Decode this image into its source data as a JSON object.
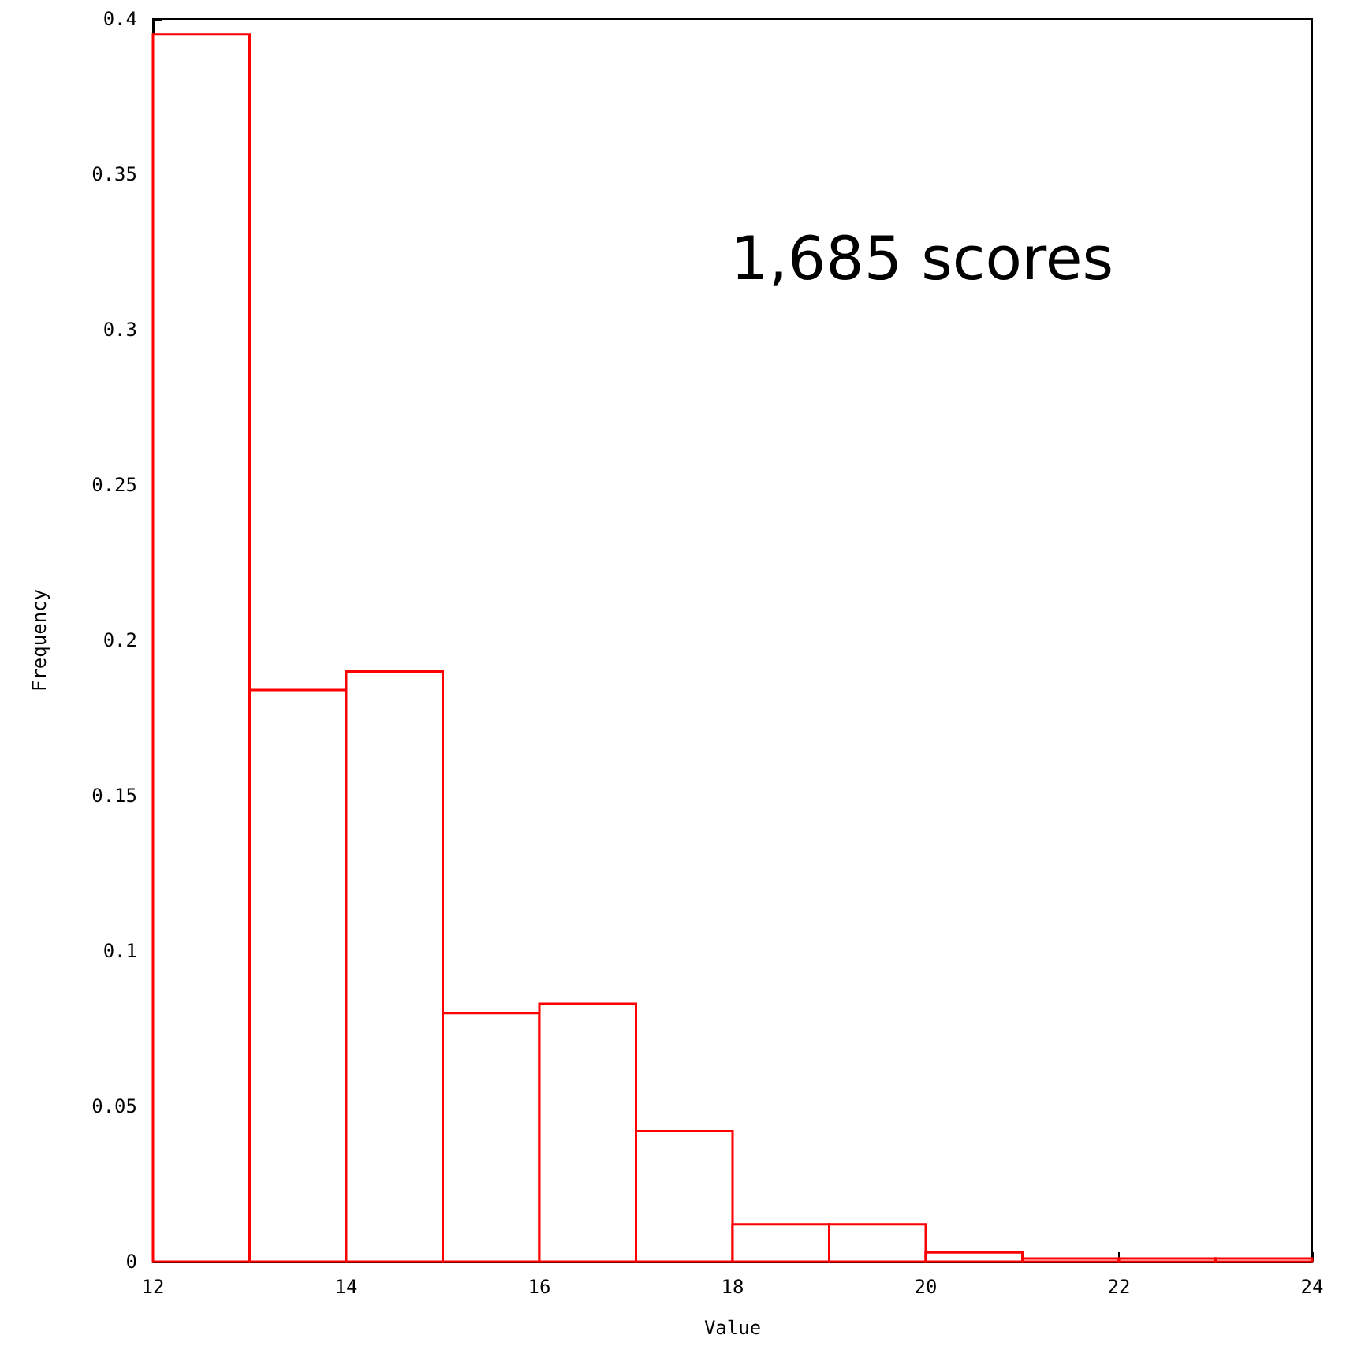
{
  "chart_data": {
    "type": "histogram",
    "xlabel": "Value",
    "ylabel": "Frequency",
    "bins": [
      12,
      13,
      14,
      15,
      16,
      17,
      18,
      19,
      20,
      21,
      22,
      23,
      24
    ],
    "values": [
      0.395,
      0.184,
      0.19,
      0.08,
      0.083,
      0.042,
      0.012,
      0.012,
      0.003,
      0.001,
      0.001,
      0.001
    ],
    "color": "#ff0000",
    "xlim": [
      12,
      24
    ],
    "xticks": [
      12,
      14,
      16,
      18,
      20,
      22,
      24
    ],
    "ylim": [
      0,
      0.4
    ],
    "yticks": [
      0,
      0.05,
      0.1,
      0.15,
      0.2,
      0.25,
      0.3,
      0.35,
      0.4
    ],
    "grid": false,
    "annotations": [
      "1,685 scores"
    ]
  }
}
